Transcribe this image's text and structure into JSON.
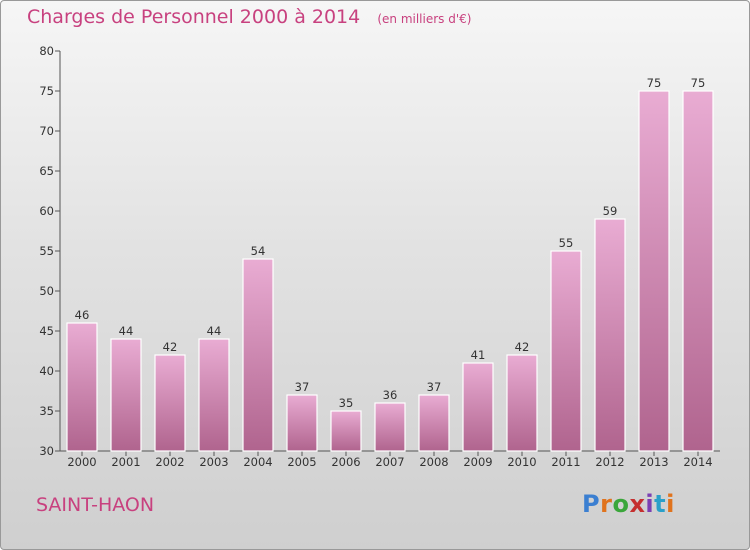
{
  "header": {
    "title": "Charges de Personnel 2000 à 2014",
    "unit": "(en milliers d'€)"
  },
  "footer": {
    "commune": "SAINT-HAON",
    "logo": "Proxiti"
  },
  "chart_data": {
    "type": "bar",
    "title": "Charges de Personnel 2000 à 2014",
    "subtitle": "(en milliers d'€)",
    "categories": [
      "2000",
      "2001",
      "2002",
      "2003",
      "2004",
      "2005",
      "2006",
      "2007",
      "2008",
      "2009",
      "2010",
      "2011",
      "2012",
      "2013",
      "2014"
    ],
    "values": [
      46,
      44,
      42,
      44,
      54,
      37,
      35,
      36,
      37,
      41,
      42,
      55,
      59,
      75,
      75
    ],
    "ylim": [
      30,
      80
    ],
    "yticks": [
      30,
      35,
      40,
      45,
      50,
      55,
      60,
      65,
      70,
      75,
      80
    ],
    "grid": false,
    "colors": {
      "bar_top": "#e6a9cf",
      "bar_bottom": "#b4648f",
      "text": "#c8417f"
    }
  }
}
